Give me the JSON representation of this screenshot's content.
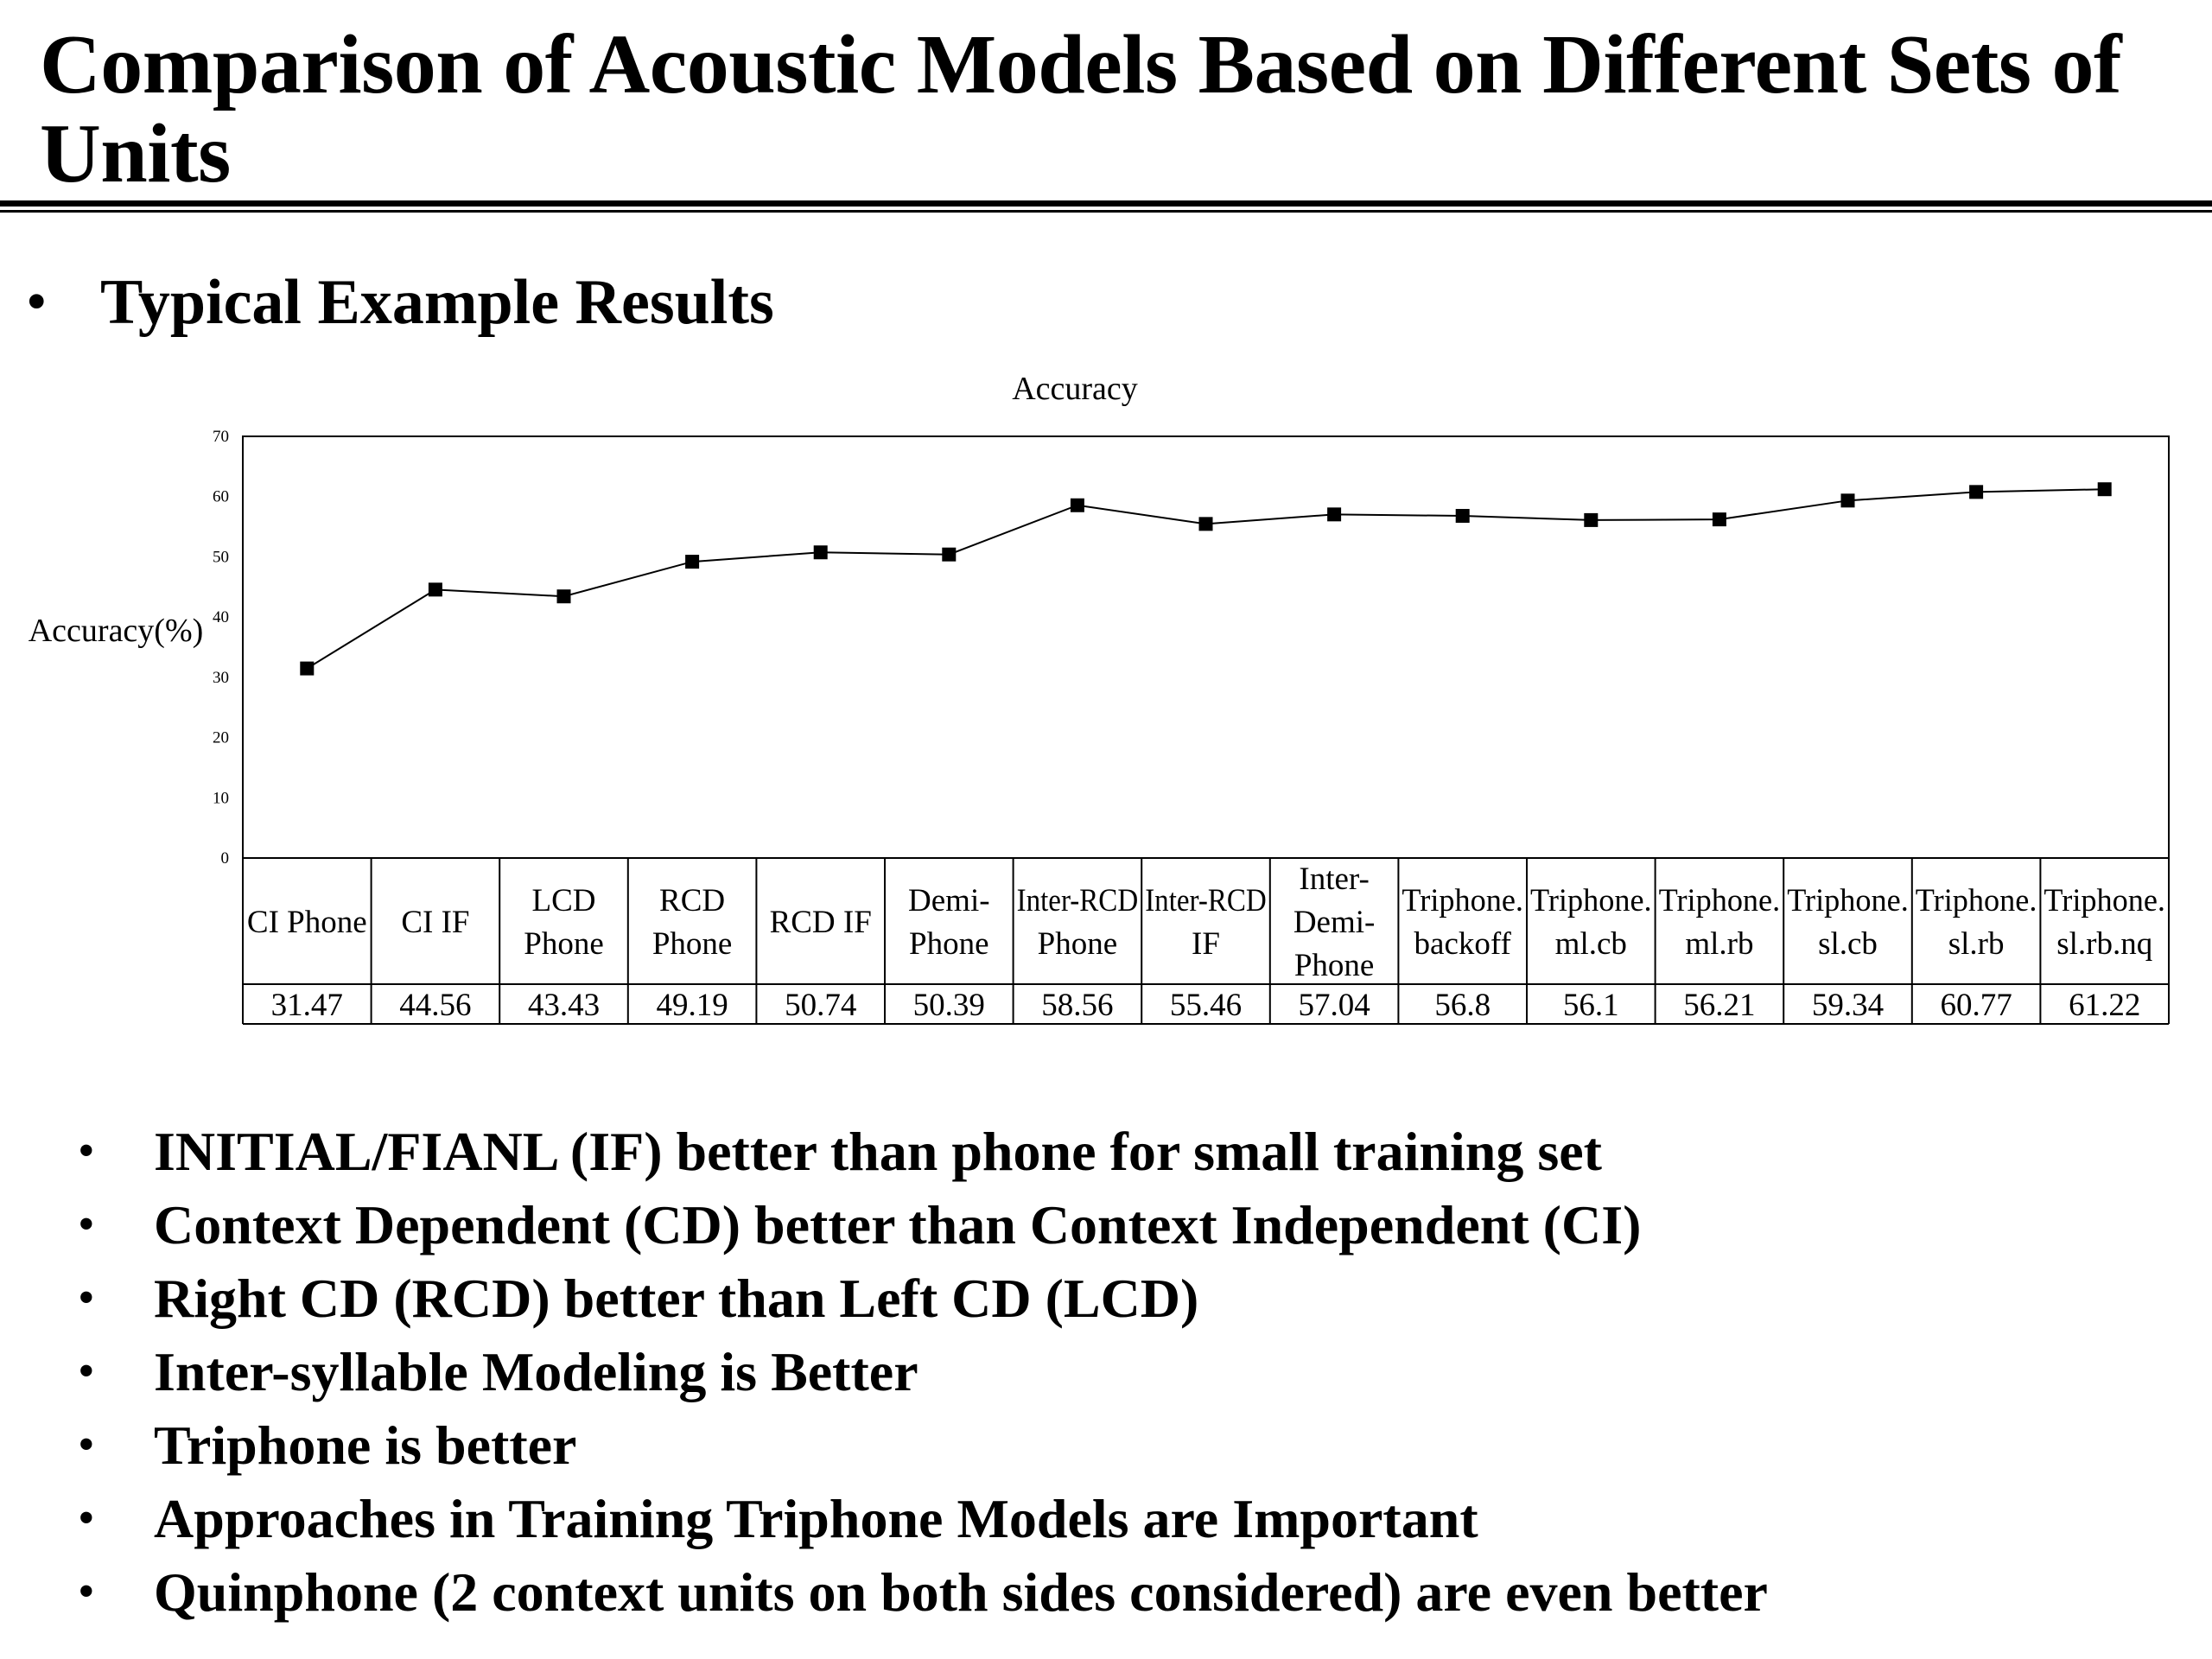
{
  "slide": {
    "title": "Comparison of Acoustic Models Based on Different Sets of Units",
    "heading_bullet": "•",
    "heading": "Typical Example Results",
    "points": [
      "INITIAL/FIANL (IF) better than phone for small training set",
      "Context Dependent (CD) better than Context Independent (CI)",
      "Right CD (RCD) better than Left CD (LCD)",
      "Inter-syllable Modeling is Better",
      "Triphone is better",
      "Approaches in Training Triphone Models are Important",
      "Quinphone (2 context units on both sides considered) are even better"
    ]
  },
  "chart_data": {
    "type": "line",
    "title": "Accuracy",
    "xlabel": "",
    "ylabel": "Accuracy(%)",
    "ylim": [
      0,
      70
    ],
    "yticks": [
      0,
      10,
      20,
      30,
      40,
      50,
      60,
      70
    ],
    "grid": false,
    "legend": "none",
    "marker": "square",
    "line_color": "#000000",
    "categories": [
      [
        "CI Phone"
      ],
      [
        "CI IF"
      ],
      [
        "LCD",
        "Phone"
      ],
      [
        "RCD",
        "Phone"
      ],
      [
        "RCD IF"
      ],
      [
        "Demi-",
        "Phone"
      ],
      [
        "Inter-RCD",
        "Phone"
      ],
      [
        "Inter-RCD",
        "IF"
      ],
      [
        "Inter-",
        "Demi-",
        "Phone"
      ],
      [
        "Triphone.",
        "backoff"
      ],
      [
        "Triphone.",
        "ml.cb"
      ],
      [
        "Triphone.",
        "ml.rb"
      ],
      [
        "Triphone.",
        "sl.cb"
      ],
      [
        "Triphone.",
        "sl.rb"
      ],
      [
        "Triphone.",
        "sl.rb.nq"
      ]
    ],
    "value_labels": [
      "31.47",
      "44.56",
      "43.43",
      "49.19",
      "50.74",
      "50.39",
      "58.56",
      "55.46",
      "57.04",
      "56.8",
      "56.1",
      "56.21",
      "59.34",
      "60.77",
      "61.22"
    ],
    "values": [
      31.47,
      44.56,
      43.43,
      49.19,
      50.74,
      50.39,
      58.56,
      55.46,
      57.04,
      56.8,
      56.1,
      56.21,
      59.34,
      60.77,
      61.22
    ]
  }
}
